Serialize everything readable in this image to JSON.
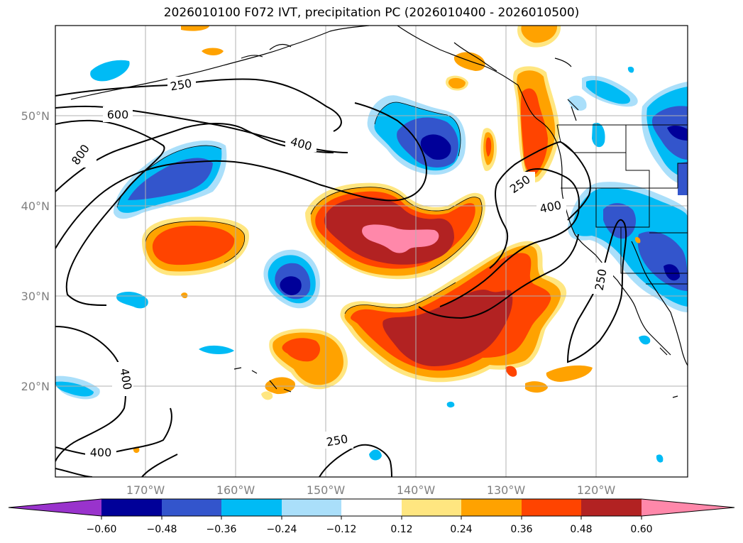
{
  "title": "2026010100 F072 IVT, precipitation PC (2026010400 - 2026010500)",
  "map": {
    "lat_labels": [
      "50°N",
      "40°N",
      "30°N",
      "20°N"
    ],
    "lon_labels": [
      "170°W",
      "160°W",
      "150°W",
      "140°W",
      "130°W",
      "120°W"
    ],
    "contour_labels": [
      "250",
      "600",
      "400",
      "800",
      "250",
      "400",
      "250",
      "400",
      "400",
      "250"
    ]
  },
  "colorbar": {
    "ticks": [
      "−0.60",
      "−0.48",
      "−0.36",
      "−0.24",
      "−0.12",
      "0.12",
      "0.24",
      "0.36",
      "0.48",
      "0.60"
    ],
    "colors": [
      "#9933cc",
      "#000099",
      "#3355cc",
      "#00bbf5",
      "#aadffa",
      "#ffffff",
      "#ffe680",
      "#ffa200",
      "#ff4400",
      "#b22222",
      "#ff88aa"
    ]
  }
}
